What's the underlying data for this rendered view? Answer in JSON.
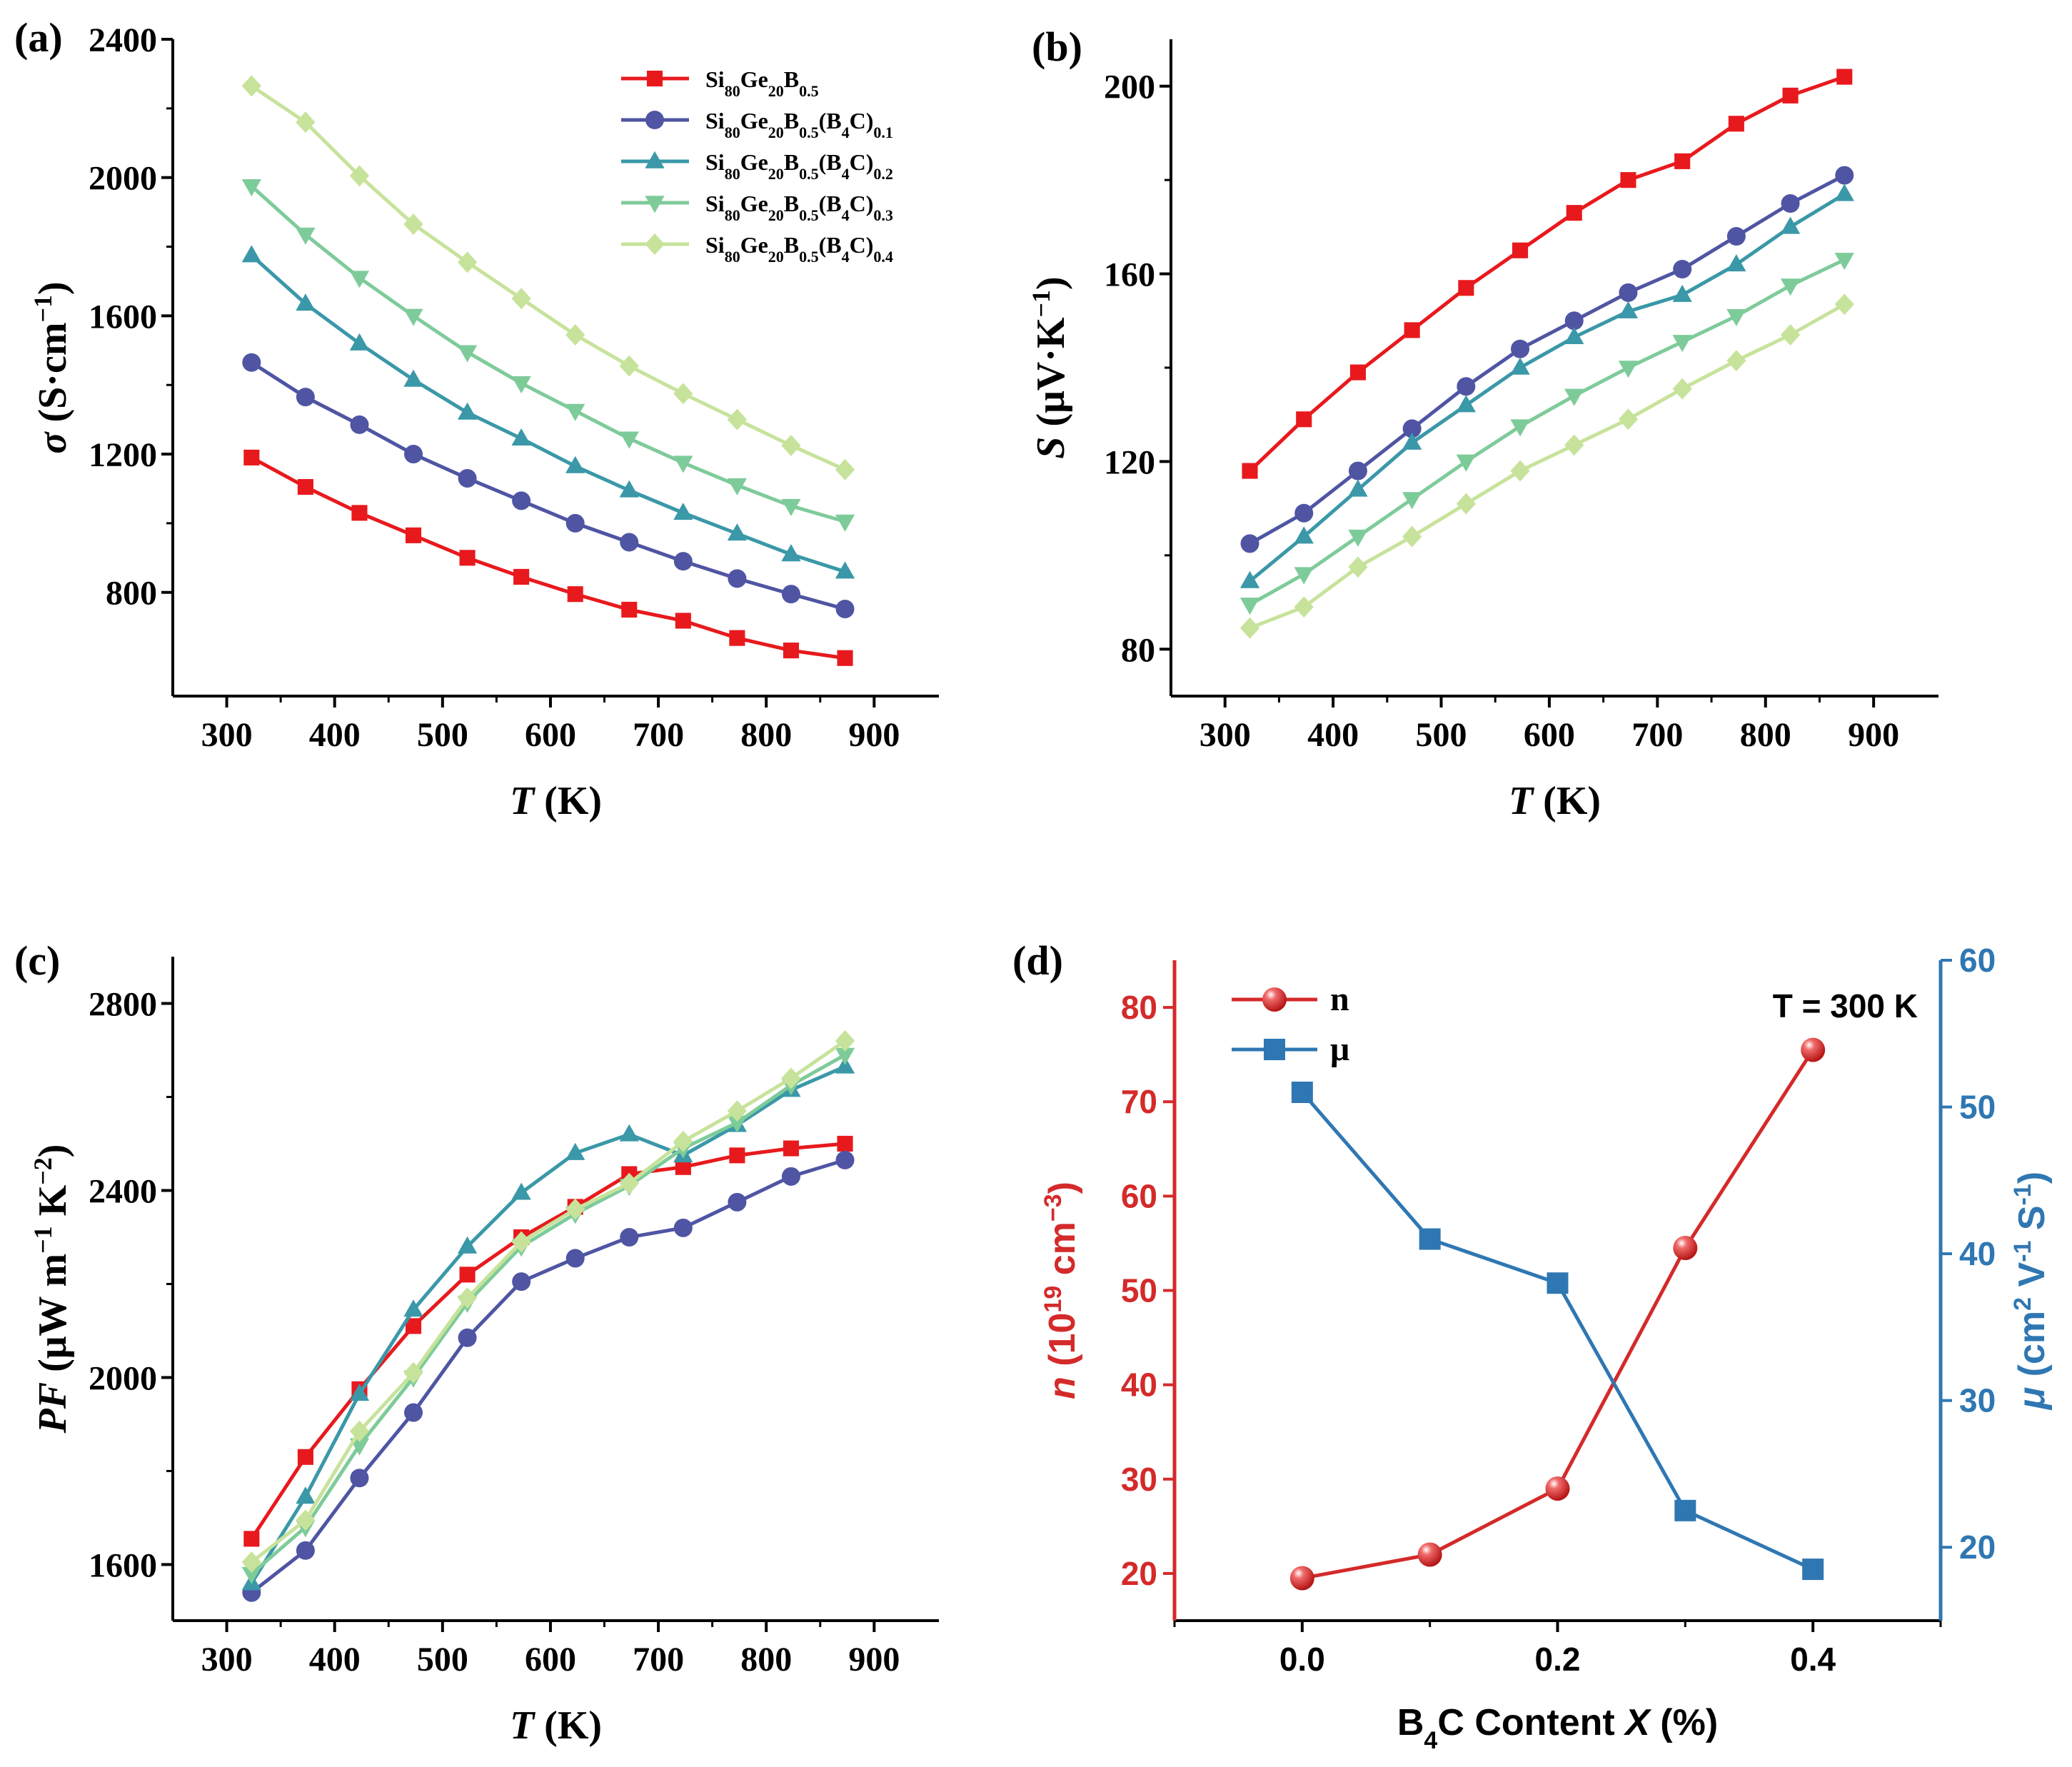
{
  "panels": {
    "a": {
      "label": "(a)"
    },
    "b": {
      "label": "(b)"
    },
    "c": {
      "label": "(c)"
    },
    "d": {
      "label": "(d)"
    }
  },
  "series_styles": [
    {
      "color": "#e8191d",
      "marker": "square"
    },
    {
      "color": "#4f55a3",
      "marker": "circle"
    },
    {
      "color": "#3a98a8",
      "marker": "triangle-up"
    },
    {
      "color": "#7ecb9a",
      "marker": "triangle-down"
    },
    {
      "color": "#c7e39b",
      "marker": "diamond"
    }
  ],
  "legend": [
    {
      "base": "Si",
      "parts": [
        [
          "Si",
          ""
        ],
        [
          "80",
          "sub"
        ],
        [
          "Ge",
          ""
        ],
        [
          "20",
          "sub"
        ],
        [
          "B",
          ""
        ],
        [
          "0.5",
          "sub"
        ]
      ]
    },
    {
      "parts": [
        [
          "Si",
          ""
        ],
        [
          "80",
          "sub"
        ],
        [
          "Ge",
          ""
        ],
        [
          "20",
          "sub"
        ],
        [
          "B",
          ""
        ],
        [
          "0.5",
          "sub"
        ],
        [
          "(B",
          ""
        ],
        [
          "4",
          "sub"
        ],
        [
          "C)",
          ""
        ],
        [
          "0.1",
          "sub"
        ]
      ]
    },
    {
      "parts": [
        [
          "Si",
          ""
        ],
        [
          "80",
          "sub"
        ],
        [
          "Ge",
          ""
        ],
        [
          "20",
          "sub"
        ],
        [
          "B",
          ""
        ],
        [
          "0.5",
          "sub"
        ],
        [
          "(B",
          ""
        ],
        [
          "4",
          "sub"
        ],
        [
          "C)",
          ""
        ],
        [
          "0.2",
          "sub"
        ]
      ]
    },
    {
      "parts": [
        [
          "Si",
          ""
        ],
        [
          "80",
          "sub"
        ],
        [
          "Ge",
          ""
        ],
        [
          "20",
          "sub"
        ],
        [
          "B",
          ""
        ],
        [
          "0.5",
          "sub"
        ],
        [
          "(B",
          ""
        ],
        [
          "4",
          "sub"
        ],
        [
          "C)",
          ""
        ],
        [
          "0.3",
          "sub"
        ]
      ]
    },
    {
      "parts": [
        [
          "Si",
          ""
        ],
        [
          "80",
          "sub"
        ],
        [
          "Ge",
          ""
        ],
        [
          "20",
          "sub"
        ],
        [
          "B",
          ""
        ],
        [
          "0.5",
          "sub"
        ],
        [
          "(B",
          ""
        ],
        [
          "4",
          "sub"
        ],
        [
          "C)",
          ""
        ],
        [
          "0.4",
          "sub"
        ]
      ]
    }
  ],
  "chart_data": [
    {
      "id": "a",
      "type": "line",
      "title": "",
      "xlabel": "T (K)",
      "ylabel": "σ (S·cm−1)",
      "xlim": [
        250,
        960
      ],
      "ylim": [
        500,
        2400
      ],
      "xticks": [
        300,
        400,
        500,
        600,
        700,
        800,
        900
      ],
      "yticks": [
        800,
        1200,
        1600,
        2000,
        2400
      ],
      "x": [
        323,
        373,
        423,
        473,
        523,
        573,
        623,
        673,
        723,
        773,
        823,
        873
      ],
      "series": [
        {
          "name": "Si80Ge20B0.5",
          "values": [
            1190,
            1105,
            1030,
            965,
            900,
            845,
            795,
            750,
            718,
            668,
            632,
            610
          ]
        },
        {
          "name": "Si80Ge20B0.5(B4C)0.1",
          "values": [
            1465,
            1365,
            1285,
            1200,
            1130,
            1065,
            1000,
            945,
            890,
            840,
            795,
            752
          ]
        },
        {
          "name": "Si80Ge20B0.5(B4C)0.2",
          "values": [
            1775,
            1635,
            1520,
            1415,
            1320,
            1245,
            1165,
            1095,
            1030,
            970,
            910,
            860
          ]
        },
        {
          "name": "Si80Ge20B0.5(B4C)0.3",
          "values": [
            1975,
            1835,
            1710,
            1600,
            1495,
            1405,
            1325,
            1245,
            1175,
            1110,
            1050,
            1005
          ]
        },
        {
          "name": "Si80Ge20B0.5(B4C)0.4",
          "values": [
            2265,
            2160,
            2005,
            1865,
            1755,
            1650,
            1545,
            1455,
            1375,
            1300,
            1225,
            1155
          ]
        }
      ]
    },
    {
      "id": "b",
      "type": "line",
      "title": "",
      "xlabel": "T (K)",
      "ylabel": "S (μV·K−1)",
      "xlim": [
        250,
        960
      ],
      "ylim": [
        70,
        210
      ],
      "xticks": [
        300,
        400,
        500,
        600,
        700,
        800,
        900
      ],
      "yticks": [
        80,
        120,
        160,
        200
      ],
      "x": [
        323,
        373,
        423,
        473,
        523,
        573,
        623,
        673,
        723,
        773,
        823,
        873
      ],
      "series": [
        {
          "name": "Si80Ge20B0.5",
          "values": [
            118,
            129,
            139,
            148,
            157,
            165,
            173,
            180,
            184,
            192,
            198,
            202
          ]
        },
        {
          "name": "Si80Ge20B0.5(B4C)0.1",
          "values": [
            102.5,
            109,
            118,
            127,
            136,
            144,
            150,
            156,
            161,
            168,
            175,
            181
          ]
        },
        {
          "name": "Si80Ge20B0.5(B4C)0.2",
          "values": [
            94.5,
            104,
            114,
            124,
            132,
            140,
            146.5,
            152,
            155.5,
            162,
            170,
            177
          ]
        },
        {
          "name": "Si80Ge20B0.5(B4C)0.3",
          "values": [
            89.5,
            96,
            104,
            112,
            120,
            127.5,
            134,
            140,
            145.5,
            151,
            157.5,
            163
          ]
        },
        {
          "name": "Si80Ge20B0.5(B4C)0.4",
          "values": [
            84.5,
            89,
            97.5,
            104,
            111,
            118,
            123.5,
            129,
            135.5,
            141.5,
            147,
            153.5
          ]
        }
      ]
    },
    {
      "id": "c",
      "type": "line",
      "title": "",
      "xlabel": "T (K)",
      "ylabel": "PF (μW m−1 K−2)",
      "xlim": [
        250,
        960
      ],
      "ylim": [
        1480,
        2900
      ],
      "xticks": [
        300,
        400,
        500,
        600,
        700,
        800,
        900
      ],
      "yticks": [
        1600,
        2000,
        2400,
        2800
      ],
      "x": [
        323,
        373,
        423,
        473,
        523,
        573,
        623,
        673,
        723,
        773,
        823,
        873
      ],
      "series": [
        {
          "name": "Si80Ge20B0.5",
          "values": [
            1655,
            1830,
            1975,
            2110,
            2220,
            2300,
            2365,
            2435,
            2450,
            2475,
            2490,
            2500
          ]
        },
        {
          "name": "Si80Ge20B0.5(B4C)0.1",
          "values": [
            1540,
            1630,
            1785,
            1925,
            2085,
            2205,
            2255,
            2300,
            2320,
            2375,
            2430,
            2465
          ]
        },
        {
          "name": "Si80Ge20B0.5(B4C)0.2",
          "values": [
            1560,
            1745,
            1965,
            2145,
            2280,
            2395,
            2480,
            2520,
            2475,
            2540,
            2615,
            2665
          ]
        },
        {
          "name": "Si80Ge20B0.5(B4C)0.3",
          "values": [
            1580,
            1680,
            1855,
            2000,
            2160,
            2280,
            2350,
            2410,
            2490,
            2545,
            2625,
            2690
          ]
        },
        {
          "name": "Si80Ge20B0.5(B4C)0.4",
          "values": [
            1605,
            1695,
            1885,
            2010,
            2170,
            2290,
            2360,
            2415,
            2505,
            2570,
            2640,
            2720
          ]
        }
      ]
    },
    {
      "id": "d",
      "type": "line",
      "title": "",
      "annotation": "T = 300 K",
      "xlabel": "B4C Content X (%)",
      "ylabel_left": "n (1019 cm−3)",
      "ylabel_right": "μ (cm2 V-1 S-1)",
      "xlim": [
        -0.1,
        0.5
      ],
      "ylim_left": [
        15,
        85
      ],
      "ylim_right": [
        15,
        60
      ],
      "xticks": [
        "0.0",
        "0.2",
        "0.4"
      ],
      "xtick_values": [
        0.0,
        0.2,
        0.4
      ],
      "yticks_left": [
        20,
        30,
        40,
        50,
        60,
        70,
        80
      ],
      "yticks_right": [
        20,
        30,
        40,
        50,
        60
      ],
      "x": [
        0.0,
        0.1,
        0.2,
        0.3,
        0.4
      ],
      "series": [
        {
          "name": "n",
          "axis": "left",
          "color": "#d42a2a",
          "values": [
            19.5,
            22.0,
            29.0,
            54.5,
            75.5
          ]
        },
        {
          "name": "μ",
          "axis": "right",
          "color": "#2f77b2",
          "values": [
            51.0,
            41.0,
            38.0,
            22.5,
            18.5
          ]
        }
      ]
    }
  ]
}
